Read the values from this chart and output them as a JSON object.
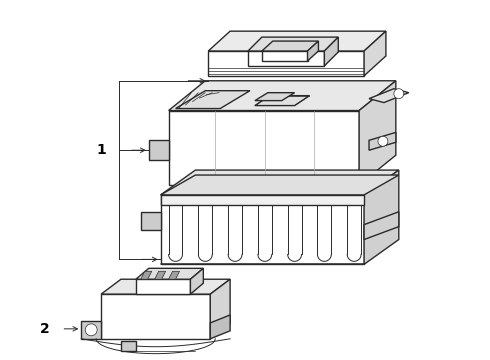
{
  "background_color": "#ffffff",
  "line_color": "#2a2a2a",
  "label_color": "#000000",
  "fig_width": 4.9,
  "fig_height": 3.6,
  "dpi": 100,
  "lw_main": 1.1,
  "lw_thin": 0.7,
  "lw_detail": 0.5
}
